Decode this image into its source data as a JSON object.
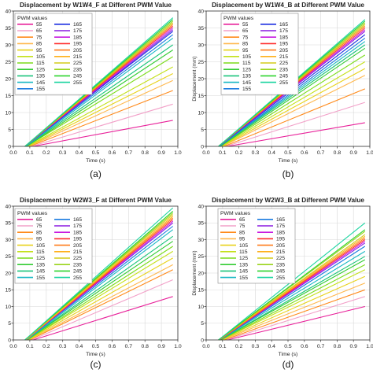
{
  "chart_data": [
    {
      "type": "line",
      "panel_label": "(a)",
      "title": "Displacement by W1W4_F at Different PWM Value",
      "xlabel": "Time (s)",
      "ylabel": "",
      "xlim": [
        0.0,
        1.0
      ],
      "ylim": [
        0,
        40
      ],
      "xticks": [
        "0.0",
        "0.1",
        "0.2",
        "0.3",
        "0.4",
        "0.5",
        "0.6",
        "0.7",
        "0.8",
        "0.9",
        "1.0"
      ],
      "yticks": [
        "0",
        "5",
        "10",
        "15",
        "20",
        "25",
        "30",
        "35",
        "40"
      ],
      "grid": true,
      "legend_title": "PWM values",
      "legend_placement": "top-left",
      "series": [
        {
          "name": "55",
          "color": "#e8219a",
          "x": [
            0.12,
            0.97
          ],
          "y": [
            0,
            7.7
          ]
        },
        {
          "name": "65",
          "color": "#f2a0c8",
          "x": [
            0.11,
            0.97
          ],
          "y": [
            0,
            12.5
          ]
        },
        {
          "name": "75",
          "color": "#ff8a1a",
          "x": [
            0.1,
            0.97
          ],
          "y": [
            0,
            16.5
          ]
        },
        {
          "name": "85",
          "color": "#ffb84d",
          "x": [
            0.095,
            0.97
          ],
          "y": [
            0,
            19.5
          ]
        },
        {
          "name": "95",
          "color": "#e8d21a",
          "x": [
            0.09,
            0.97
          ],
          "y": [
            0,
            21.5
          ]
        },
        {
          "name": "105",
          "color": "#c4e01a",
          "x": [
            0.085,
            0.97
          ],
          "y": [
            0,
            23.5
          ]
        },
        {
          "name": "115",
          "color": "#7bdc1a",
          "x": [
            0.08,
            0.97
          ],
          "y": [
            0,
            26.5
          ]
        },
        {
          "name": "125",
          "color": "#33cc33",
          "x": [
            0.08,
            0.97
          ],
          "y": [
            0,
            28.5
          ]
        },
        {
          "name": "135",
          "color": "#1ac47b",
          "x": [
            0.075,
            0.97
          ],
          "y": [
            0,
            30.0
          ]
        },
        {
          "name": "145",
          "color": "#1ab8c4",
          "x": [
            0.075,
            0.97
          ],
          "y": [
            0,
            32.0
          ]
        },
        {
          "name": "155",
          "color": "#1a7be0",
          "x": [
            0.07,
            0.97
          ],
          "y": [
            0,
            33.0
          ]
        },
        {
          "name": "165",
          "color": "#1a2ee0",
          "x": [
            0.07,
            0.97
          ],
          "y": [
            0,
            34.0
          ]
        },
        {
          "name": "175",
          "color": "#8a1ae0",
          "x": [
            0.07,
            0.97
          ],
          "y": [
            0,
            34.5
          ]
        },
        {
          "name": "185",
          "color": "#c81ae0",
          "x": [
            0.07,
            0.97
          ],
          "y": [
            0,
            35.0
          ]
        },
        {
          "name": "195",
          "color": "#ff2e2e",
          "x": [
            0.07,
            0.97
          ],
          "y": [
            0,
            35.5
          ]
        },
        {
          "name": "205",
          "color": "#ff7b1a",
          "x": [
            0.07,
            0.97
          ],
          "y": [
            0,
            36.0
          ]
        },
        {
          "name": "215",
          "color": "#ffb01a",
          "x": [
            0.07,
            0.97
          ],
          "y": [
            0,
            36.5
          ]
        },
        {
          "name": "225",
          "color": "#d4cc1a",
          "x": [
            0.07,
            0.97
          ],
          "y": [
            0,
            36.5
          ]
        },
        {
          "name": "235",
          "color": "#9ad41a",
          "x": [
            0.07,
            0.97
          ],
          "y": [
            0,
            37.0
          ]
        },
        {
          "name": "245",
          "color": "#2ed42e",
          "x": [
            0.07,
            0.97
          ],
          "y": [
            0,
            37.5
          ]
        },
        {
          "name": "255",
          "color": "#1ad4a0",
          "x": [
            0.07,
            0.97
          ],
          "y": [
            0,
            38.0
          ]
        }
      ]
    },
    {
      "type": "line",
      "panel_label": "(b)",
      "title": "Displacement by W1W4_B at Different PWM Value",
      "xlabel": "Time (s)",
      "ylabel": "Displacement (mm)",
      "xlim": [
        0.0,
        1.0
      ],
      "ylim": [
        0,
        40
      ],
      "xticks": [
        "0.0",
        "0.1",
        "0.2",
        "0.3",
        "0.4",
        "0.5",
        "0.6",
        "0.7",
        "0.8",
        "0.9",
        "1.0"
      ],
      "yticks": [
        "0",
        "5",
        "10",
        "15",
        "20",
        "25",
        "30",
        "35",
        "40"
      ],
      "grid": true,
      "legend_title": "PWM values",
      "legend_placement": "top-left",
      "series": [
        {
          "name": "55",
          "color": "#e8219a",
          "x": [
            0.13,
            0.97
          ],
          "y": [
            0,
            7.0
          ]
        },
        {
          "name": "65",
          "color": "#f2a0c8",
          "x": [
            0.12,
            0.97
          ],
          "y": [
            0,
            13.0
          ]
        },
        {
          "name": "75",
          "color": "#ff8a1a",
          "x": [
            0.11,
            0.97
          ],
          "y": [
            0,
            17.0
          ]
        },
        {
          "name": "85",
          "color": "#ffb84d",
          "x": [
            0.1,
            0.97
          ],
          "y": [
            0,
            21.0
          ]
        },
        {
          "name": "95",
          "color": "#e8d21a",
          "x": [
            0.095,
            0.97
          ],
          "y": [
            0,
            23.0
          ]
        },
        {
          "name": "105",
          "color": "#c4e01a",
          "x": [
            0.09,
            0.97
          ],
          "y": [
            0,
            25.0
          ]
        },
        {
          "name": "115",
          "color": "#7bdc1a",
          "x": [
            0.085,
            0.97
          ],
          "y": [
            0,
            27.0
          ]
        },
        {
          "name": "125",
          "color": "#33cc33",
          "x": [
            0.085,
            0.97
          ],
          "y": [
            0,
            29.0
          ]
        },
        {
          "name": "135",
          "color": "#1ac47b",
          "x": [
            0.08,
            0.97
          ],
          "y": [
            0,
            30.0
          ]
        },
        {
          "name": "145",
          "color": "#1ab8c4",
          "x": [
            0.08,
            0.97
          ],
          "y": [
            0,
            31.0
          ]
        },
        {
          "name": "155",
          "color": "#1a7be0",
          "x": [
            0.08,
            0.97
          ],
          "y": [
            0,
            32.0
          ]
        },
        {
          "name": "165",
          "color": "#1a2ee0",
          "x": [
            0.075,
            0.97
          ],
          "y": [
            0,
            33.0
          ]
        },
        {
          "name": "175",
          "color": "#8a1ae0",
          "x": [
            0.075,
            0.97
          ],
          "y": [
            0,
            34.0
          ]
        },
        {
          "name": "185",
          "color": "#c81ae0",
          "x": [
            0.075,
            0.97
          ],
          "y": [
            0,
            34.5
          ]
        },
        {
          "name": "195",
          "color": "#ff2e2e",
          "x": [
            0.075,
            0.97
          ],
          "y": [
            0,
            35.0
          ]
        },
        {
          "name": "205",
          "color": "#ff7b1a",
          "x": [
            0.075,
            0.97
          ],
          "y": [
            0,
            35.5
          ]
        },
        {
          "name": "215",
          "color": "#ffb01a",
          "x": [
            0.075,
            0.97
          ],
          "y": [
            0,
            36.0
          ]
        },
        {
          "name": "225",
          "color": "#d4cc1a",
          "x": [
            0.075,
            0.97
          ],
          "y": [
            0,
            36.0
          ]
        },
        {
          "name": "235",
          "color": "#9ad41a",
          "x": [
            0.075,
            0.97
          ],
          "y": [
            0,
            36.5
          ]
        },
        {
          "name": "245",
          "color": "#2ed42e",
          "x": [
            0.075,
            0.97
          ],
          "y": [
            0,
            37.0
          ]
        },
        {
          "name": "255",
          "color": "#1ad4a0",
          "x": [
            0.075,
            0.97
          ],
          "y": [
            0,
            37.5
          ]
        }
      ]
    },
    {
      "type": "line",
      "panel_label": "(c)",
      "title": "Displacement by W2W3_F at Different PWM Value",
      "xlabel": "Time (s)",
      "ylabel": "",
      "xlim": [
        0.0,
        1.0
      ],
      "ylim": [
        0,
        40
      ],
      "xticks": [
        "0.0",
        "0.1",
        "0.2",
        "0.3",
        "0.4",
        "0.5",
        "0.6",
        "0.7",
        "0.8",
        "0.9",
        "1.0"
      ],
      "yticks": [
        "0",
        "5",
        "10",
        "15",
        "20",
        "25",
        "30",
        "35",
        "40"
      ],
      "grid": true,
      "legend_title": "PWM values",
      "legend_placement": "top-left",
      "series": [
        {
          "name": "65",
          "color": "#e8219a",
          "x": [
            0.12,
            0.97
          ],
          "y": [
            0,
            13.0
          ]
        },
        {
          "name": "75",
          "color": "#f2a0c8",
          "x": [
            0.11,
            0.97
          ],
          "y": [
            0,
            18.0
          ]
        },
        {
          "name": "85",
          "color": "#ff8a1a",
          "x": [
            0.1,
            0.97
          ],
          "y": [
            0,
            21.0
          ]
        },
        {
          "name": "95",
          "color": "#ffb84d",
          "x": [
            0.095,
            0.97
          ],
          "y": [
            0,
            22.5
          ]
        },
        {
          "name": "105",
          "color": "#e8d21a",
          "x": [
            0.09,
            0.97
          ],
          "y": [
            0,
            24.5
          ]
        },
        {
          "name": "115",
          "color": "#c4e01a",
          "x": [
            0.085,
            0.97
          ],
          "y": [
            0,
            26.5
          ]
        },
        {
          "name": "125",
          "color": "#7bdc1a",
          "x": [
            0.085,
            0.97
          ],
          "y": [
            0,
            28.0
          ]
        },
        {
          "name": "135",
          "color": "#33cc33",
          "x": [
            0.08,
            0.97
          ],
          "y": [
            0,
            29.5
          ]
        },
        {
          "name": "145",
          "color": "#1ac47b",
          "x": [
            0.08,
            0.97
          ],
          "y": [
            0,
            31.0
          ]
        },
        {
          "name": "155",
          "color": "#1ab8c4",
          "x": [
            0.08,
            0.97
          ],
          "y": [
            0,
            33.0
          ]
        },
        {
          "name": "165",
          "color": "#1a7be0",
          "x": [
            0.075,
            0.97
          ],
          "y": [
            0,
            34.0
          ]
        },
        {
          "name": "175",
          "color": "#8a1ae0",
          "x": [
            0.075,
            0.97
          ],
          "y": [
            0,
            35.0
          ]
        },
        {
          "name": "185",
          "color": "#c81ae0",
          "x": [
            0.075,
            0.97
          ],
          "y": [
            0,
            35.5
          ]
        },
        {
          "name": "195",
          "color": "#ff2e2e",
          "x": [
            0.075,
            0.97
          ],
          "y": [
            0,
            36.0
          ]
        },
        {
          "name": "205",
          "color": "#ff7b1a",
          "x": [
            0.075,
            0.97
          ],
          "y": [
            0,
            36.5
          ]
        },
        {
          "name": "215",
          "color": "#ffb01a",
          "x": [
            0.075,
            0.97
          ],
          "y": [
            0,
            37.0
          ]
        },
        {
          "name": "225",
          "color": "#d4cc1a",
          "x": [
            0.07,
            0.97
          ],
          "y": [
            0,
            37.5
          ]
        },
        {
          "name": "235",
          "color": "#9ad41a",
          "x": [
            0.07,
            0.97
          ],
          "y": [
            0,
            38.0
          ]
        },
        {
          "name": "245",
          "color": "#2ed42e",
          "x": [
            0.07,
            0.97
          ],
          "y": [
            0,
            38.5
          ]
        },
        {
          "name": "255",
          "color": "#1ad4a0",
          "x": [
            0.07,
            0.97
          ],
          "y": [
            0,
            39.5
          ]
        }
      ]
    },
    {
      "type": "line",
      "panel_label": "(d)",
      "title": "Displacement by W2W3_B at Different PWM Value",
      "xlabel": "Time (s)",
      "ylabel": "Displacement (mm)",
      "xlim": [
        0.0,
        1.0
      ],
      "ylim": [
        0,
        40
      ],
      "xticks": [
        "0.0",
        "0.1",
        "0.2",
        "0.3",
        "0.4",
        "0.5",
        "0.6",
        "0.7",
        "0.8",
        "0.9",
        "1.0"
      ],
      "yticks": [
        "0",
        "5",
        "10",
        "15",
        "20",
        "25",
        "30",
        "35",
        "40"
      ],
      "grid": true,
      "legend_title": "PWM values",
      "legend_placement": "top-left",
      "series": [
        {
          "name": "65",
          "color": "#e8219a",
          "x": [
            0.13,
            0.97
          ],
          "y": [
            0,
            10.0
          ]
        },
        {
          "name": "75",
          "color": "#f2a0c8",
          "x": [
            0.12,
            0.97
          ],
          "y": [
            0,
            13.0
          ]
        },
        {
          "name": "85",
          "color": "#ff8a1a",
          "x": [
            0.11,
            0.97
          ],
          "y": [
            0,
            15.0
          ]
        },
        {
          "name": "95",
          "color": "#ffb84d",
          "x": [
            0.1,
            0.97
          ],
          "y": [
            0,
            17.0
          ]
        },
        {
          "name": "105",
          "color": "#e8d21a",
          "x": [
            0.095,
            0.97
          ],
          "y": [
            0,
            19.0
          ]
        },
        {
          "name": "115",
          "color": "#c4e01a",
          "x": [
            0.09,
            0.97
          ],
          "y": [
            0,
            21.0
          ]
        },
        {
          "name": "125",
          "color": "#7bdc1a",
          "x": [
            0.09,
            0.97
          ],
          "y": [
            0,
            22.5
          ]
        },
        {
          "name": "135",
          "color": "#33cc33",
          "x": [
            0.085,
            0.97
          ],
          "y": [
            0,
            24.0
          ]
        },
        {
          "name": "145",
          "color": "#1ac47b",
          "x": [
            0.085,
            0.97
          ],
          "y": [
            0,
            25.0
          ]
        },
        {
          "name": "155",
          "color": "#1ab8c4",
          "x": [
            0.08,
            0.97
          ],
          "y": [
            0,
            26.5
          ]
        },
        {
          "name": "165",
          "color": "#1a7be0",
          "x": [
            0.08,
            0.97
          ],
          "y": [
            0,
            28.0
          ]
        },
        {
          "name": "175",
          "color": "#8a1ae0",
          "x": [
            0.08,
            0.97
          ],
          "y": [
            0,
            29.0
          ]
        },
        {
          "name": "185",
          "color": "#c81ae0",
          "x": [
            0.08,
            0.97
          ],
          "y": [
            0,
            29.5
          ]
        },
        {
          "name": "195",
          "color": "#ff2e2e",
          "x": [
            0.08,
            0.97
          ],
          "y": [
            0,
            30.0
          ]
        },
        {
          "name": "205",
          "color": "#ff7b1a",
          "x": [
            0.08,
            0.97
          ],
          "y": [
            0,
            30.5
          ]
        },
        {
          "name": "215",
          "color": "#ffb01a",
          "x": [
            0.075,
            0.97
          ],
          "y": [
            0,
            31.0
          ]
        },
        {
          "name": "225",
          "color": "#d4cc1a",
          "x": [
            0.075,
            0.97
          ],
          "y": [
            0,
            31.5
          ]
        },
        {
          "name": "235",
          "color": "#9ad41a",
          "x": [
            0.075,
            0.97
          ],
          "y": [
            0,
            32.5
          ]
        },
        {
          "name": "245",
          "color": "#2ed42e",
          "x": [
            0.075,
            0.97
          ],
          "y": [
            0,
            33.0
          ]
        },
        {
          "name": "255",
          "color": "#1ad4a0",
          "x": [
            0.075,
            0.97
          ],
          "y": [
            0,
            35.0
          ]
        }
      ]
    }
  ]
}
